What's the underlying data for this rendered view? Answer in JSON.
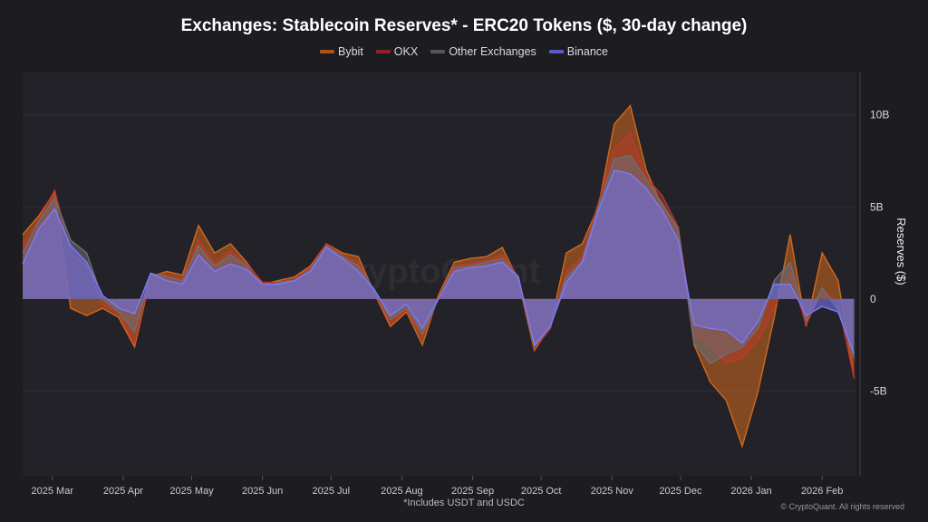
{
  "chart_data": {
    "type": "area",
    "title": "Exchanges: Stablecoin Reserves* - ERC20 Tokens ($, 30-day change)",
    "ylabel": "Reserves ($)",
    "xlabel": "",
    "ylim": [
      -9.6,
      12.3
    ],
    "yunit": "B",
    "yticks": [
      {
        "v": 10,
        "label": "10B"
      },
      {
        "v": 5,
        "label": "5B"
      },
      {
        "v": 0,
        "label": "0"
      },
      {
        "v": -5,
        "label": "-5B"
      }
    ],
    "xticks": [
      {
        "d": "2025-03-01",
        "label": "2025 Mar"
      },
      {
        "d": "2025-04-01",
        "label": "2025 Apr"
      },
      {
        "d": "2025-05-01",
        "label": "2025 May"
      },
      {
        "d": "2025-06-01",
        "label": "2025 Jun"
      },
      {
        "d": "2025-07-01",
        "label": "2025 Jul"
      },
      {
        "d": "2025-08-01",
        "label": "2025 Aug"
      },
      {
        "d": "2025-09-01",
        "label": "2025 Sep"
      },
      {
        "d": "2025-10-01",
        "label": "2025 Oct"
      },
      {
        "d": "2025-11-01",
        "label": "2025 Nov"
      },
      {
        "d": "2025-12-01",
        "label": "2025 Dec"
      },
      {
        "d": "2026-01-01",
        "label": "2026 Jan"
      },
      {
        "d": "2026-02-01",
        "label": "2026 Feb"
      }
    ],
    "xlim": [
      "2025-02-16",
      "2026-02-16"
    ],
    "grid": true,
    "legend_position": "top",
    "x": [
      "2025-02-16",
      "2025-02-23",
      "2025-03-02",
      "2025-03-09",
      "2025-03-16",
      "2025-03-23",
      "2025-03-30",
      "2025-04-06",
      "2025-04-13",
      "2025-04-20",
      "2025-04-27",
      "2025-05-04",
      "2025-05-11",
      "2025-05-18",
      "2025-05-25",
      "2025-06-01",
      "2025-06-08",
      "2025-06-15",
      "2025-06-22",
      "2025-06-29",
      "2025-07-06",
      "2025-07-13",
      "2025-07-20",
      "2025-07-27",
      "2025-08-03",
      "2025-08-10",
      "2025-08-17",
      "2025-08-24",
      "2025-08-31",
      "2025-09-07",
      "2025-09-14",
      "2025-09-21",
      "2025-09-28",
      "2025-10-05",
      "2025-10-12",
      "2025-10-19",
      "2025-10-26",
      "2025-11-02",
      "2025-11-09",
      "2025-11-16",
      "2025-11-23",
      "2025-11-30",
      "2025-12-07",
      "2025-12-14",
      "2025-12-21",
      "2025-12-28",
      "2026-01-04",
      "2026-01-11",
      "2026-01-18",
      "2026-01-25",
      "2026-02-01",
      "2026-02-08",
      "2026-02-15"
    ],
    "series": [
      {
        "name": "Bybit",
        "color": "#d2691e",
        "values": [
          3.5,
          4.5,
          5.8,
          -0.5,
          -0.9,
          -0.5,
          -1.0,
          -2.6,
          1.2,
          1.5,
          1.3,
          4.0,
          2.5,
          3.0,
          2.0,
          0.8,
          1.0,
          1.2,
          1.8,
          3.0,
          2.5,
          2.3,
          0.3,
          -1.5,
          -0.7,
          -2.5,
          0.2,
          2.0,
          2.2,
          2.3,
          2.8,
          1.0,
          -2.8,
          -1.5,
          2.5,
          3.0,
          5.0,
          9.5,
          10.5,
          7.0,
          5.0,
          3.8,
          -2.5,
          -4.5,
          -5.5,
          -8.0,
          -5.0,
          -1.0,
          3.5,
          -1.5,
          2.5,
          1.0,
          -4.3
        ]
      },
      {
        "name": "OKX",
        "color": "#c0392b",
        "values": [
          3.0,
          4.3,
          5.9,
          2.5,
          1.8,
          -0.3,
          -0.8,
          -2.4,
          1.3,
          1.3,
          1.1,
          3.2,
          2.0,
          2.6,
          1.9,
          0.9,
          0.9,
          1.1,
          1.7,
          3.0,
          2.4,
          2.0,
          0.4,
          -1.3,
          -0.6,
          -2.1,
          0.1,
          1.8,
          1.9,
          2.1,
          2.4,
          1.2,
          -2.7,
          -1.6,
          1.5,
          2.3,
          5.2,
          8.2,
          9.0,
          6.6,
          5.6,
          3.9,
          -2.0,
          -2.6,
          -3.5,
          -3.2,
          -2.2,
          -0.5,
          1.5,
          -1.4,
          0.5,
          -0.2,
          -4.3
        ]
      },
      {
        "name": "Other Exchanges",
        "color": "#6e6e78",
        "values": [
          2.5,
          4.2,
          5.5,
          3.2,
          2.5,
          0.0,
          -0.7,
          -1.8,
          1.4,
          1.2,
          1.0,
          2.9,
          1.8,
          2.4,
          1.8,
          0.6,
          0.9,
          1.0,
          1.6,
          2.9,
          2.3,
          1.8,
          0.5,
          -1.1,
          -0.5,
          -1.9,
          0.0,
          1.7,
          1.8,
          2.0,
          2.2,
          1.2,
          -2.6,
          -1.5,
          1.2,
          2.1,
          5.0,
          7.6,
          7.8,
          6.5,
          5.2,
          3.8,
          -2.4,
          -3.5,
          -3.0,
          -2.6,
          -1.6,
          1.0,
          2.0,
          -1.2,
          0.6,
          -0.6,
          -3.2
        ]
      },
      {
        "name": "Binance",
        "color": "#7b7bf5",
        "values": [
          1.9,
          3.8,
          4.9,
          2.9,
          2.0,
          0.2,
          -0.5,
          -0.8,
          1.4,
          1.0,
          0.8,
          2.4,
          1.5,
          1.9,
          1.6,
          0.8,
          0.8,
          1.0,
          1.5,
          2.8,
          2.2,
          1.5,
          0.5,
          -0.9,
          -0.3,
          -1.6,
          0.0,
          1.5,
          1.7,
          1.8,
          2.0,
          1.2,
          -2.5,
          -1.5,
          0.9,
          2.0,
          4.8,
          7.0,
          6.8,
          6.0,
          4.8,
          3.2,
          -1.4,
          -1.6,
          -1.7,
          -2.4,
          -1.2,
          0.8,
          0.8,
          -0.9,
          -0.4,
          -0.7,
          -3.0
        ]
      }
    ],
    "footnote": "*Includes USDT and USDC",
    "watermark": "CryptoQuant",
    "copyright": "© CryptoQuant. All rights reserved"
  }
}
